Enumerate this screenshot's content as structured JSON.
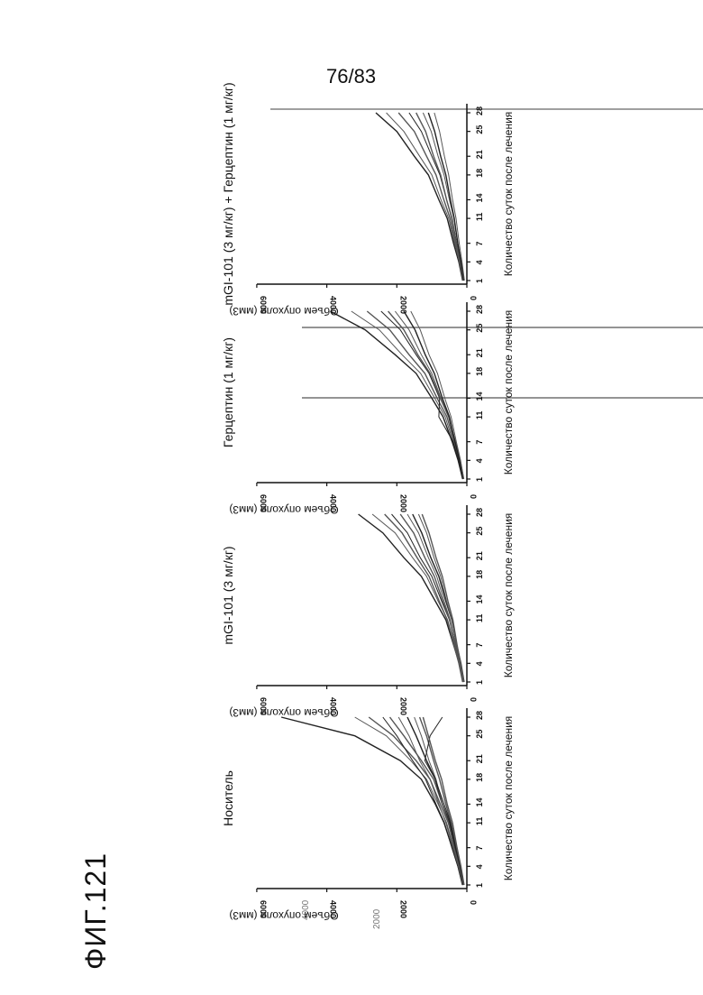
{
  "page": {
    "page_number": "76/83",
    "figure_label": "ФИГ.121",
    "stray_tick_labels": [
      "4000",
      "2000"
    ]
  },
  "chart_data": [
    {
      "type": "line",
      "title": "Носитель",
      "ylabel": "Объем опухоли (мм3)",
      "xlabel": "Количество суток после лечения",
      "xticks": [
        1,
        4,
        7,
        11,
        14,
        18,
        21,
        25,
        28
      ],
      "yticks": [
        0,
        2000,
        4000,
        6000
      ],
      "ylim": [
        0,
        6000
      ],
      "grid_lines_y": [
        2000,
        4000
      ],
      "x": [
        1,
        4,
        7,
        11,
        14,
        18,
        21,
        25,
        28
      ],
      "series": [
        {
          "values": [
            120,
            250,
            420,
            650,
            900,
            1300,
            1900,
            3200,
            5300
          ]
        },
        {
          "values": [
            110,
            230,
            380,
            580,
            820,
            1150,
            1600,
            2300,
            3200
          ]
        },
        {
          "values": [
            100,
            210,
            350,
            530,
            760,
            1050,
            1450,
            2100,
            2800
          ]
        },
        {
          "values": [
            130,
            260,
            430,
            640,
            880,
            1180,
            1550,
            2000,
            2400
          ]
        },
        {
          "values": [
            90,
            190,
            320,
            480,
            700,
            950,
            1300,
            1800,
            2200
          ]
        },
        {
          "values": [
            120,
            240,
            400,
            600,
            800,
            1050,
            1350,
            1650,
            1950
          ]
        },
        {
          "values": [
            100,
            200,
            330,
            500,
            700,
            900,
            1150,
            1450,
            1700
          ]
        },
        {
          "values": [
            110,
            220,
            360,
            520,
            700,
            880,
            1080,
            1300,
            1500
          ]
        },
        {
          "values": [
            90,
            180,
            300,
            450,
            600,
            780,
            950,
            1150,
            1350
          ]
        },
        {
          "values": [
            100,
            200,
            320,
            460,
            650,
            900,
            1200,
            1050,
            700
          ]
        },
        {
          "values": [
            80,
            170,
            280,
            410,
            560,
            720,
            900,
            1100,
            1250
          ]
        }
      ]
    },
    {
      "type": "line",
      "title": "mGI-101 (3 мг/кг)",
      "ylabel": "Объем опухоли (мм3)",
      "xlabel": "Количество суток после лечения",
      "xticks": [
        1,
        4,
        7,
        11,
        14,
        18,
        21,
        25,
        28
      ],
      "yticks": [
        0,
        2000,
        4000,
        6000
      ],
      "ylim": [
        0,
        6000
      ],
      "grid_lines_y": [
        2000,
        4000
      ],
      "x": [
        1,
        4,
        7,
        11,
        14,
        18,
        21,
        25,
        28
      ],
      "series": [
        {
          "values": [
            110,
            220,
            380,
            600,
            900,
            1300,
            1800,
            2400,
            3100
          ]
        },
        {
          "values": [
            100,
            210,
            350,
            550,
            820,
            1150,
            1550,
            2050,
            2700
          ]
        },
        {
          "values": [
            120,
            230,
            370,
            560,
            790,
            1080,
            1420,
            1850,
            2350
          ]
        },
        {
          "values": [
            90,
            190,
            320,
            500,
            720,
            1000,
            1330,
            1700,
            2150
          ]
        },
        {
          "values": [
            100,
            200,
            330,
            490,
            690,
            930,
            1200,
            1520,
            1900
          ]
        },
        {
          "values": [
            110,
            210,
            340,
            480,
            650,
            860,
            1100,
            1380,
            1700
          ]
        },
        {
          "values": [
            80,
            170,
            290,
            430,
            600,
            800,
            1030,
            1290,
            1550
          ]
        },
        {
          "values": [
            100,
            190,
            300,
            430,
            580,
            750,
            940,
            1150,
            1380
          ]
        },
        {
          "values": [
            90,
            180,
            280,
            400,
            540,
            700,
            880,
            1080,
            1280
          ]
        }
      ]
    },
    {
      "type": "line",
      "title": "Герцептин (1 мг/кг)",
      "ylabel": "Объем опухоли (мм3)",
      "xlabel": "Количество суток после лечения",
      "xticks": [
        1,
        4,
        7,
        11,
        14,
        18,
        21,
        25,
        28
      ],
      "yticks": [
        0,
        2000,
        4000,
        6000
      ],
      "ylim": [
        0,
        6000
      ],
      "grid_lines_y": [
        2000,
        4000
      ],
      "x": [
        1,
        4,
        7,
        11,
        14,
        18,
        21,
        25,
        28
      ],
      "series": [
        {
          "values": [
            120,
            250,
            420,
            680,
            1000,
            1450,
            2050,
            2900,
            3900
          ]
        },
        {
          "values": [
            110,
            230,
            390,
            620,
            920,
            1320,
            1850,
            2500,
            3300
          ]
        },
        {
          "values": [
            100,
            210,
            360,
            570,
            850,
            1200,
            1650,
            2200,
            2850
          ]
        },
        {
          "values": [
            120,
            240,
            390,
            800,
            780,
            1080,
            1450,
            1900,
            2450
          ]
        },
        {
          "values": [
            90,
            190,
            330,
            520,
            760,
            1050,
            1400,
            1800,
            2250
          ]
        },
        {
          "values": [
            100,
            200,
            340,
            520,
            740,
            1000,
            1300,
            1650,
            2050
          ]
        },
        {
          "values": [
            110,
            210,
            340,
            500,
            700,
            930,
            1190,
            1480,
            1800
          ]
        },
        {
          "values": [
            90,
            180,
            300,
            450,
            630,
            840,
            1080,
            1330,
            1600
          ]
        }
      ]
    },
    {
      "type": "line",
      "title": "mGI-101 (3 мг/кг) + Герцептин (1 мг/кг)",
      "ylabel": "Объем опухоли (мм3)",
      "xlabel": "Количество суток после лечения",
      "xticks": [
        1,
        4,
        7,
        11,
        14,
        18,
        21,
        25,
        28
      ],
      "yticks": [
        0,
        2000,
        4000,
        6000
      ],
      "ylim": [
        0,
        6000
      ],
      "grid_lines_y": [
        2000,
        4000
      ],
      "x": [
        1,
        4,
        7,
        11,
        14,
        18,
        21,
        25,
        28
      ],
      "series": [
        {
          "values": [
            120,
            230,
            380,
            560,
            800,
            1100,
            1500,
            2000,
            2600
          ]
        },
        {
          "values": [
            100,
            210,
            350,
            520,
            740,
            1000,
            1350,
            1800,
            2300
          ]
        },
        {
          "values": [
            110,
            210,
            330,
            480,
            660,
            880,
            1150,
            1500,
            1950
          ]
        },
        {
          "values": [
            90,
            180,
            290,
            420,
            580,
            770,
            1000,
            1300,
            1650
          ]
        },
        {
          "values": [
            100,
            190,
            300,
            430,
            580,
            750,
            950,
            1180,
            1450
          ]
        },
        {
          "values": [
            80,
            160,
            260,
            370,
            500,
            650,
            820,
            1020,
            1250
          ]
        },
        {
          "values": [
            90,
            170,
            260,
            360,
            470,
            600,
            750,
            920,
            1100
          ]
        },
        {
          "values": [
            70,
            140,
            220,
            310,
            410,
            520,
            640,
            780,
            930
          ]
        }
      ]
    }
  ]
}
